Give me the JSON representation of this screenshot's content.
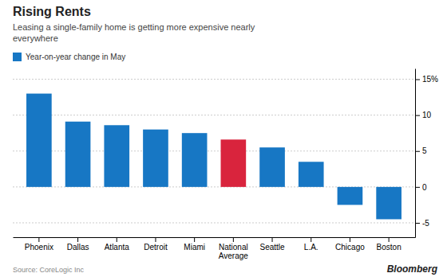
{
  "chart_data": {
    "type": "bar",
    "title": "Rising Rents",
    "subtitle": "Leasing a single-family home is getting more expensive nearly\neverywhere",
    "categories": [
      "Phoenix",
      "Dallas",
      "Atlanta",
      "Detroit",
      "Miami",
      "National\nAverage",
      "Seattle",
      "L.A.",
      "Chicago",
      "Boston"
    ],
    "series": [
      {
        "name": "Year-on-year change in May",
        "color": "#1777c4",
        "colors": [
          "#1777c4",
          "#1777c4",
          "#1777c4",
          "#1777c4",
          "#1777c4",
          "#d9243d",
          "#1777c4",
          "#1777c4",
          "#1777c4",
          "#1777c4"
        ],
        "values": [
          13.0,
          9.1,
          8.6,
          8.0,
          7.5,
          6.6,
          5.5,
          3.5,
          -2.5,
          -4.5
        ]
      }
    ],
    "ylim": [
      -7,
      16.5
    ],
    "yticks": [
      -5,
      0,
      5,
      10,
      {
        "value": 15,
        "label": "15%"
      }
    ],
    "grid": true,
    "legend": "top-left",
    "annotations": [
      "Source: CoreLogic Inc",
      "Bloomberg"
    ]
  }
}
